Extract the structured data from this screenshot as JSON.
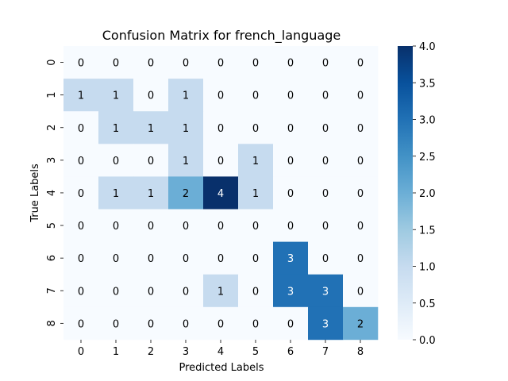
{
  "chart_data": {
    "type": "heatmap",
    "title": "Confusion Matrix for french_language",
    "xlabel": "Predicted Labels",
    "ylabel": "True Labels",
    "x_categories": [
      "0",
      "1",
      "2",
      "3",
      "4",
      "5",
      "6",
      "7",
      "8"
    ],
    "y_categories": [
      "0",
      "1",
      "2",
      "3",
      "4",
      "5",
      "6",
      "7",
      "8"
    ],
    "values": [
      [
        0,
        0,
        0,
        0,
        0,
        0,
        0,
        0,
        0
      ],
      [
        1,
        1,
        0,
        1,
        0,
        0,
        0,
        0,
        0
      ],
      [
        0,
        1,
        1,
        1,
        0,
        0,
        0,
        0,
        0
      ],
      [
        0,
        0,
        0,
        1,
        0,
        1,
        0,
        0,
        0
      ],
      [
        0,
        1,
        1,
        2,
        4,
        1,
        0,
        0,
        0
      ],
      [
        0,
        0,
        0,
        0,
        0,
        0,
        0,
        0,
        0
      ],
      [
        0,
        0,
        0,
        0,
        0,
        0,
        3,
        0,
        0
      ],
      [
        0,
        0,
        0,
        0,
        1,
        0,
        3,
        3,
        0
      ],
      [
        0,
        0,
        0,
        0,
        0,
        0,
        0,
        3,
        2
      ]
    ],
    "colorbar": {
      "min": 0.0,
      "max": 4.0,
      "ticks": [
        "0.0",
        "0.5",
        "1.0",
        "1.5",
        "2.0",
        "2.5",
        "3.0",
        "3.5",
        "4.0"
      ],
      "colormap": "Blues"
    },
    "grid": false
  }
}
